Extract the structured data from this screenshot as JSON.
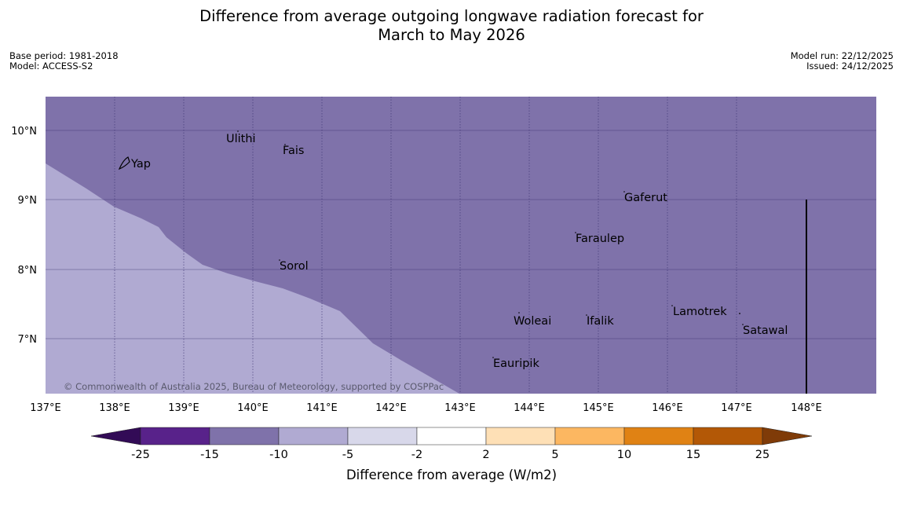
{
  "title": {
    "line1": "Difference from average outgoing longwave radiation forecast for",
    "line2": "March to May 2026"
  },
  "meta_left": {
    "base_period": "Base period: 1981-2018",
    "model": "Model: ACCESS-S2"
  },
  "meta_right": {
    "model_run": "Model run: 22/12/2025",
    "issued": "Issued: 24/12/2025"
  },
  "map": {
    "lon_range": [
      137,
      149
    ],
    "lat_range": [
      6.2,
      10.5
    ],
    "x_ticks": [
      "137°E",
      "138°E",
      "139°E",
      "140°E",
      "141°E",
      "142°E",
      "143°E",
      "144°E",
      "145°E",
      "146°E",
      "147°E",
      "148°E"
    ],
    "y_ticks": [
      "10°N",
      "9°N",
      "8°N",
      "7°N"
    ],
    "places": {
      "yap": "Yap",
      "ulithi": "Ulithi",
      "fais": "Fais",
      "sorol": "Sorol",
      "gaferut": "Gaferut",
      "faraulep": "Faraulep",
      "woleai": "Woleai",
      "ifalik": "Ifalik",
      "lamotrek": "Lamotrek",
      "satawal": "Satawal",
      "eauripik": "Eauripik"
    },
    "copyright": "© Commonwealth of Australia 2025, Bureau of Meteorology, supported by COSPPac",
    "colors": {
      "region_main": "#7f72aa",
      "region_light": "#b0aad2",
      "grid": "#3a3070"
    }
  },
  "colorbar": {
    "ticks": [
      "-25",
      "-15",
      "-10",
      "-5",
      "-2",
      "2",
      "5",
      "10",
      "15",
      "25"
    ],
    "colors": [
      "#320b56",
      "#58228a",
      "#7f72aa",
      "#b0aad2",
      "#d8d8ea",
      "#ffffff",
      "#fee0b6",
      "#fcb761",
      "#e08214",
      "#b35806",
      "#7f3b08"
    ],
    "label": "Difference from average (W/m2)"
  }
}
